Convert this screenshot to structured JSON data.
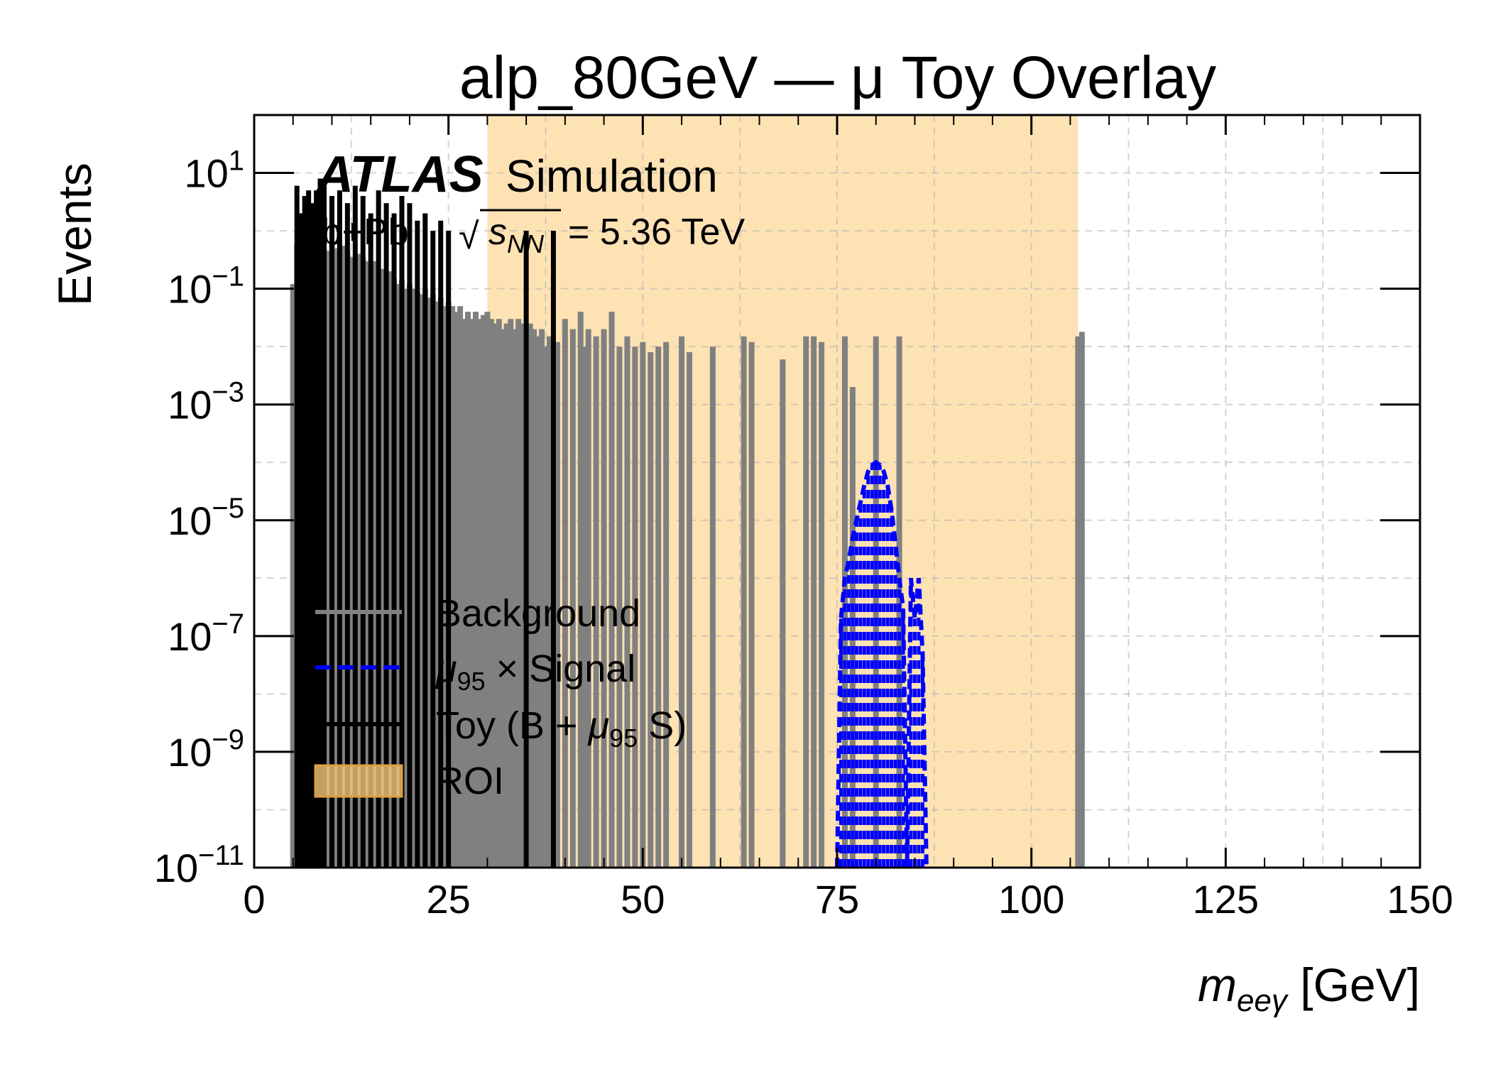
{
  "chart_data": {
    "type": "line",
    "title": "alp_80GeV — μ   Toy Overlay",
    "xlabel": "m_eeγ [GeV]",
    "xlabel_main": "m",
    "xlabel_sub": "eeγ",
    "xlabel_unit": "[GeV]",
    "ylabel": "Events",
    "xlim": [
      0,
      150
    ],
    "ylim": [
      1e-11,
      100
    ],
    "y_scale": "log",
    "grid": true,
    "legend_placement": "lower-left",
    "x_ticks": [
      0,
      25,
      50,
      75,
      100,
      125,
      150
    ],
    "y_ticks": [
      {
        "base": "10",
        "exp": "1",
        "value": 10
      },
      {
        "base": "10",
        "exp": "−1",
        "value": 0.1
      },
      {
        "base": "10",
        "exp": "−3",
        "value": 0.001
      },
      {
        "base": "10",
        "exp": "−5",
        "value": 1e-05
      },
      {
        "base": "10",
        "exp": "−7",
        "value": 1e-07
      },
      {
        "base": "10",
        "exp": "−9",
        "value": 1e-09
      },
      {
        "base": "10",
        "exp": "−11",
        "value": 1e-11
      }
    ],
    "roi": {
      "x_start": 30,
      "x_end": 106,
      "color": "#fde2b3"
    },
    "experiment": {
      "name": "ATLAS",
      "label": "Simulation",
      "collision": "Pb+Pb",
      "energy_label": "= 5.36 TeV",
      "sqrt_var": "s",
      "sqrt_sub": "NN"
    },
    "series": [
      {
        "name": "Background",
        "color": "#808080",
        "style": "solid",
        "x": [
          5.0,
          5.5,
          6.0,
          6.5,
          7.0,
          7.5,
          8.0,
          8.5,
          9.0,
          9.5,
          10.0,
          10.5,
          11.0,
          11.5,
          12.0,
          12.5,
          13.0,
          13.5,
          14.0,
          14.5,
          15.0,
          15.5,
          16.0,
          16.5,
          17.0,
          17.5,
          18.0,
          18.5,
          19.0,
          19.5,
          20.0,
          20.5,
          21.0,
          21.5,
          22.0,
          22.5,
          23.0,
          23.5,
          24.0,
          24.5,
          25.0,
          25.5,
          26.0,
          26.5,
          27.0,
          27.5,
          28.0,
          28.5,
          29.0,
          29.5,
          30.0,
          30.5,
          31.0,
          31.5,
          32.0,
          32.5,
          33.0,
          33.5,
          34.0,
          34.5,
          35.0,
          35.5,
          36.0,
          36.5,
          37.0,
          37.5,
          38.0,
          38.5,
          39.0,
          40.0,
          41.0,
          42.0,
          42.5,
          43.0,
          44.0,
          45.0,
          46.0,
          47.0,
          48.0,
          49.0,
          50.0,
          51.0,
          52.0,
          53.0,
          55.0,
          56.0,
          59.0,
          63.0,
          64.0,
          68.0,
          71.0,
          72.0,
          73.0,
          76.0,
          77.0,
          80.0,
          83.0,
          106.0,
          106.5
        ],
        "y": [
          0.12,
          0.6,
          1.2,
          1.0,
          0.8,
          0.7,
          0.6,
          0.5,
          0.5,
          0.45,
          0.6,
          0.5,
          0.4,
          0.55,
          0.45,
          0.35,
          0.3,
          0.4,
          0.35,
          0.3,
          0.25,
          0.3,
          0.2,
          0.22,
          0.18,
          0.2,
          0.15,
          0.12,
          0.14,
          0.1,
          0.12,
          0.1,
          0.09,
          0.08,
          0.1,
          0.07,
          0.08,
          0.06,
          0.07,
          0.05,
          0.06,
          0.05,
          0.04,
          0.05,
          0.03,
          0.04,
          0.03,
          0.04,
          0.03,
          0.035,
          0.04,
          0.03,
          0.025,
          0.03,
          0.02,
          0.025,
          0.03,
          0.02,
          0.03,
          0.025,
          0.02,
          0.025,
          0.02,
          0.015,
          0.02,
          0.01,
          0.015,
          0.01,
          0.012,
          0.03,
          0.02,
          0.04,
          0.01,
          0.02,
          0.015,
          0.02,
          0.04,
          0.01,
          0.015,
          0.01,
          0.012,
          0.008,
          0.01,
          0.012,
          0.015,
          0.008,
          0.01,
          0.015,
          0.012,
          0.006,
          0.015,
          0.015,
          0.012,
          0.015,
          0.002,
          0.015,
          0.015,
          0.015,
          0.018
        ]
      },
      {
        "name": "μ₉₅ ×  Signal",
        "color": "#0000ff",
        "style": "dashed",
        "x": [
          75.0,
          75.5,
          76.0,
          76.5,
          77.0,
          77.5,
          78.0,
          78.5,
          79.0,
          79.5,
          80.0,
          80.5,
          81.0,
          81.5,
          82.0,
          82.5,
          83.0,
          83.5,
          84.0,
          84.5,
          85.0,
          85.5,
          86.0,
          86.5
        ],
        "y": [
          1e-11,
          2e-07,
          1e-06,
          2e-06,
          5e-06,
          1e-05,
          2e-05,
          4e-05,
          7e-05,
          9e-05,
          0.0001,
          9e-05,
          7e-05,
          4e-05,
          1.5e-05,
          4e-06,
          1e-06,
          3e-07,
          1e-11,
          1e-06,
          2e-07,
          1e-06,
          5e-08,
          1e-11
        ]
      },
      {
        "name": "Toy (B + μ₉₅ S)",
        "color": "#000000",
        "style": "solid",
        "x": [
          5.5,
          6.0,
          6.5,
          7.0,
          7.5,
          8.0,
          8.5,
          9.0,
          10.0,
          11.0,
          12.0,
          13.0,
          14.0,
          15.0,
          16.0,
          17.0,
          18.0,
          19.0,
          20.0,
          21.0,
          22.0,
          23.0,
          24.0,
          25.0,
          35.0,
          38.5
        ],
        "y": [
          6,
          2,
          4,
          5,
          3,
          5,
          8,
          6,
          4,
          5,
          3,
          6,
          4,
          2,
          5,
          3,
          2,
          4,
          3,
          1.5,
          2,
          1,
          1.5,
          1,
          1,
          1
        ]
      }
    ],
    "legend": [
      {
        "label": "Background",
        "main": "Background",
        "sub": "",
        "rest": ""
      },
      {
        "label": "μ₉₅ ×  Signal",
        "main": "μ",
        "sub": "95",
        "rest": " ×  Signal"
      },
      {
        "label": "Toy (B + μ₉₅ S)",
        "main": "Toy (B + ",
        "mu": "μ",
        "sub": "95",
        "rest": " S)"
      },
      {
        "label": "ROI",
        "main": "ROI",
        "sub": "",
        "rest": ""
      }
    ]
  }
}
